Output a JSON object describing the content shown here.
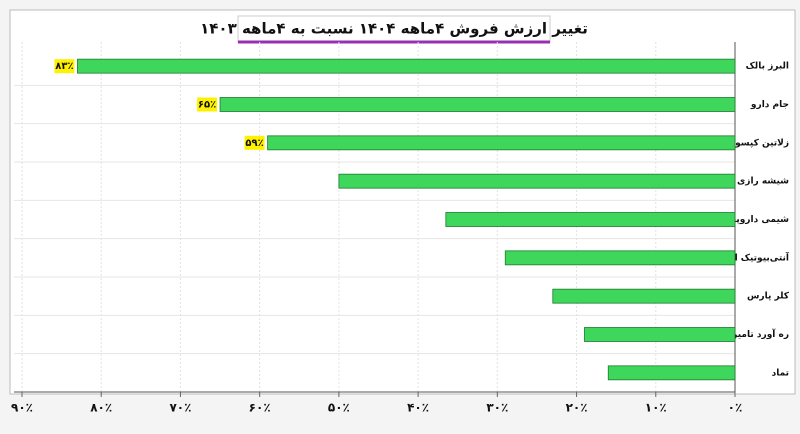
{
  "chart_data": {
    "type": "hbar",
    "title": "تغییر ارزش فروش ۴ماهه ۱۴۰۴ نسبت به ۴ماهه ۱۴۰۳",
    "categories": [
      "البرز بالک",
      "جام دارو",
      "زلاتین کپسول",
      "شیشه رازی",
      "شیمی داروپخش",
      "آنتی‌بیوتیک ایران",
      "کلر پارس",
      "ره آورد تامین",
      "تماد"
    ],
    "values": [
      83,
      65,
      59,
      50,
      36.5,
      29,
      23,
      19,
      16
    ],
    "value_labels": [
      "۸۳٪",
      "۶۵٪",
      "۵۹٪",
      null,
      null,
      null,
      null,
      null,
      null
    ],
    "color": "#3fd65c",
    "xlim": [
      0,
      90
    ],
    "x_reversed": true,
    "xticks": [
      {
        "value": 90,
        "label": "۹۰٪"
      },
      {
        "value": 80,
        "label": "۸۰٪"
      },
      {
        "value": 70,
        "label": "۷۰٪"
      },
      {
        "value": 60,
        "label": "۶۰٪"
      },
      {
        "value": 50,
        "label": "۵۰٪"
      },
      {
        "value": 40,
        "label": "۴۰٪"
      },
      {
        "value": 30,
        "label": "۳۰٪"
      },
      {
        "value": 20,
        "label": "۲۰٪"
      },
      {
        "value": 10,
        "label": "۱۰٪"
      },
      {
        "value": 0,
        "label": "۰٪"
      }
    ],
    "grid": true
  }
}
